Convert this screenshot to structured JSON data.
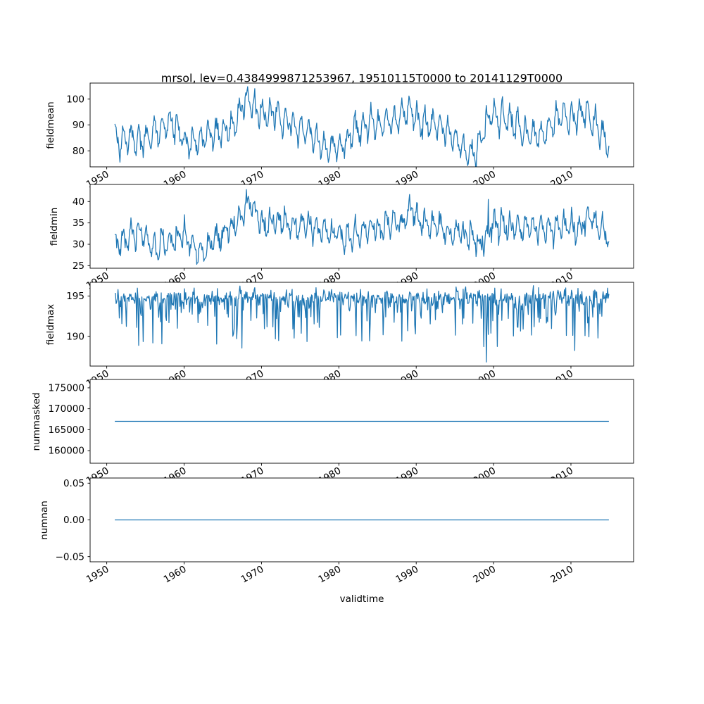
{
  "figure": {
    "background": "#ffffff",
    "line_color": "#1f77b4",
    "axis_color": "#000000"
  },
  "chart_data": {
    "type": "line",
    "title": "mrsol, lev=0.4384999871253967, 19510115T0000 to 20141129T0000",
    "xlabel": "validtime",
    "legend": "none",
    "grid": false,
    "xlim": [
      1947.85,
      2018.1
    ],
    "xticks": [
      {
        "v": 1950,
        "label": "1950"
      },
      {
        "v": 1960,
        "label": "1960"
      },
      {
        "v": 1970,
        "label": "1970"
      },
      {
        "v": 1980,
        "label": "1980"
      },
      {
        "v": 1990,
        "label": "1990"
      },
      {
        "v": 2000,
        "label": "2000"
      },
      {
        "v": 2010,
        "label": "2010"
      }
    ],
    "x_points": {
      "start": 1951.04,
      "end": 2014.91,
      "n": 767
    },
    "panels": [
      {
        "ylabel": "fieldmean",
        "ylim": [
          73.8,
          106.2
        ],
        "yticks": [
          {
            "v": 80,
            "label": "80"
          },
          {
            "v": 90,
            "label": "90"
          },
          {
            "v": 100,
            "label": "100"
          }
        ],
        "model": {
          "kind": "seasonal",
          "seed": 3,
          "seasonal_amp": 4.2,
          "seasonal_amp2": 1.4,
          "noise_sd": 1.5,
          "wander": 0.25,
          "envelope": [
            [
              1951,
              84
            ],
            [
              1953,
              86
            ],
            [
              1955,
              85
            ],
            [
              1957,
              89
            ],
            [
              1958.5,
              91
            ],
            [
              1960,
              84
            ],
            [
              1961.5,
              83
            ],
            [
              1963,
              86
            ],
            [
              1965,
              87
            ],
            [
              1966.5,
              91
            ],
            [
              1968,
              99.5
            ],
            [
              1969,
              97
            ],
            [
              1970.5,
              94
            ],
            [
              1972,
              93
            ],
            [
              1974,
              90
            ],
            [
              1976,
              87
            ],
            [
              1977.5,
              83
            ],
            [
              1979,
              81.5
            ],
            [
              1980.5,
              82
            ],
            [
              1982,
              88
            ],
            [
              1984,
              89
            ],
            [
              1986,
              91
            ],
            [
              1987.5,
              93
            ],
            [
              1989,
              95.5
            ],
            [
              1990.5,
              90
            ],
            [
              1992,
              91
            ],
            [
              1993.5,
              88
            ],
            [
              1995,
              85
            ],
            [
              1996.5,
              79
            ],
            [
              1997.5,
              77.5
            ],
            [
              1999,
              90
            ],
            [
              2000,
              94.5
            ],
            [
              2001.5,
              93
            ],
            [
              2003,
              91
            ],
            [
              2004.5,
              88
            ],
            [
              2006,
              87
            ],
            [
              2007.5,
              90
            ],
            [
              2009,
              94
            ],
            [
              2010.5,
              92
            ],
            [
              2012,
              95
            ],
            [
              2013,
              92
            ],
            [
              2014.9,
              81
            ]
          ]
        }
      },
      {
        "ylabel": "fieldmin",
        "ylim": [
          24.4,
          44
        ],
        "yticks": [
          {
            "v": 25,
            "label": "25"
          },
          {
            "v": 30,
            "label": "30"
          },
          {
            "v": 35,
            "label": "35"
          },
          {
            "v": 40,
            "label": "40"
          }
        ],
        "model": {
          "kind": "seasonal",
          "seed": 7,
          "seasonal_amp": 2.1,
          "seasonal_amp2": 0.8,
          "noise_sd": 1.0,
          "wander": 0.2,
          "envelope": [
            [
              1951,
              29.5
            ],
            [
              1953,
              31
            ],
            [
              1954.5,
              33
            ],
            [
              1956,
              29.5
            ],
            [
              1958,
              31
            ],
            [
              1959.5,
              33.5
            ],
            [
              1961,
              31
            ],
            [
              1962.5,
              28.5
            ],
            [
              1964,
              31.5
            ],
            [
              1966,
              33
            ],
            [
              1967.5,
              37
            ],
            [
              1968.5,
              39.5
            ],
            [
              1970,
              35
            ],
            [
              1972,
              36
            ],
            [
              1974,
              34
            ],
            [
              1976,
              34.5
            ],
            [
              1978,
              33
            ],
            [
              1980,
              31.5
            ],
            [
              1982,
              33
            ],
            [
              1984,
              33.5
            ],
            [
              1986,
              34
            ],
            [
              1988,
              34.5
            ],
            [
              1989.5,
              37
            ],
            [
              1991,
              34
            ],
            [
              1993,
              34.5
            ],
            [
              1995,
              33
            ],
            [
              1997,
              31
            ],
            [
              1998.5,
              30
            ],
            [
              2000,
              35.5
            ],
            [
              2001.5,
              34
            ],
            [
              2003,
              34.5
            ],
            [
              2005,
              34
            ],
            [
              2007,
              33.5
            ],
            [
              2009,
              35
            ],
            [
              2011,
              34
            ],
            [
              2012.5,
              36
            ],
            [
              2014.9,
              30.5
            ]
          ],
          "events": [
            {
              "x": 1999.3,
              "value": 40.5
            }
          ]
        }
      },
      {
        "ylabel": "fieldmax",
        "ylim": [
          186.3,
          196.7
        ],
        "yticks": [
          {
            "v": 190,
            "label": "190"
          },
          {
            "v": 195,
            "label": "195"
          }
        ],
        "model": {
          "kind": "spiky",
          "seed": 13,
          "seasonal_amp": 0.25,
          "noise_sd": 0.5,
          "spike_prob": 0.25,
          "spike_min": 0.7,
          "spike_max": 6,
          "clip_max": 196.3,
          "envelope": [
            [
              1951,
              194.7
            ],
            [
              1968,
              194.9
            ],
            [
              1990,
              194.8
            ],
            [
              2014.9,
              194.9
            ]
          ],
          "events": [
            {
              "x": 1999.1,
              "value": 186.8
            }
          ]
        }
      },
      {
        "ylabel": "nummasked",
        "ylim": [
          157000,
          177000
        ],
        "yticks": [
          {
            "v": 160000,
            "label": "160000"
          },
          {
            "v": 165000,
            "label": "165000"
          },
          {
            "v": 170000,
            "label": "170000"
          },
          {
            "v": 175000,
            "label": "175000"
          }
        ],
        "model": {
          "kind": "constant",
          "value": 167000
        }
      },
      {
        "ylabel": "numnan",
        "ylim": [
          -0.057,
          0.057
        ],
        "yticks": [
          {
            "v": -0.05,
            "label": "−0.05"
          },
          {
            "v": 0,
            "label": "0.00"
          },
          {
            "v": 0.05,
            "label": "0.05"
          }
        ],
        "model": {
          "kind": "constant",
          "value": 0
        }
      }
    ]
  }
}
